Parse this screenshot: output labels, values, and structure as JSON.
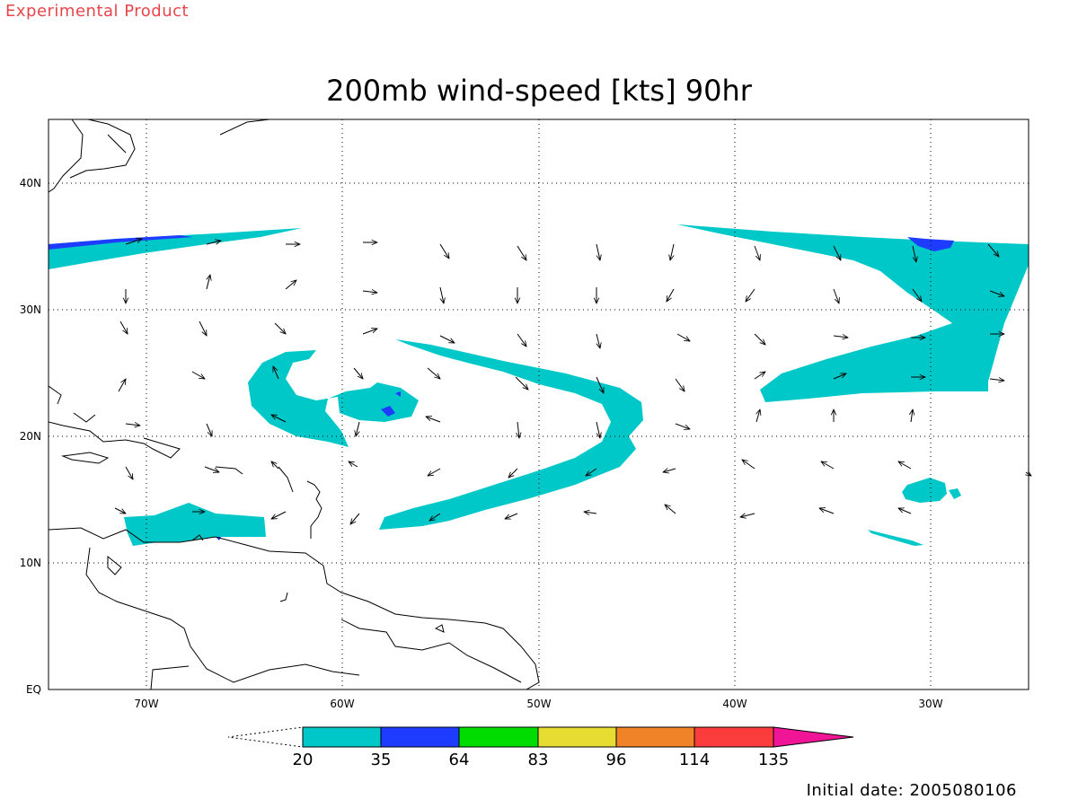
{
  "header": {
    "text": "Experimental Product"
  },
  "map": {
    "title": "200mb wind-speed [kts] 90hr",
    "lat_labels": [
      "EQ",
      "10N",
      "20N",
      "30N",
      "40N"
    ],
    "lon_labels": [
      "70W",
      "60W",
      "50W",
      "40W",
      "30W"
    ],
    "gridlines": "dotted"
  },
  "colorbar": {
    "levels": [
      "20",
      "35",
      "64",
      "83",
      "96",
      "114",
      "135"
    ],
    "colors": [
      "#00c8c8",
      "#1e3cff",
      "#00dc00",
      "#e6dc32",
      "#f08228",
      "#fa3c3c",
      "#f01496"
    ],
    "extend": "both"
  },
  "footer": {
    "initial_date": "Initial date: 2005080106"
  }
}
